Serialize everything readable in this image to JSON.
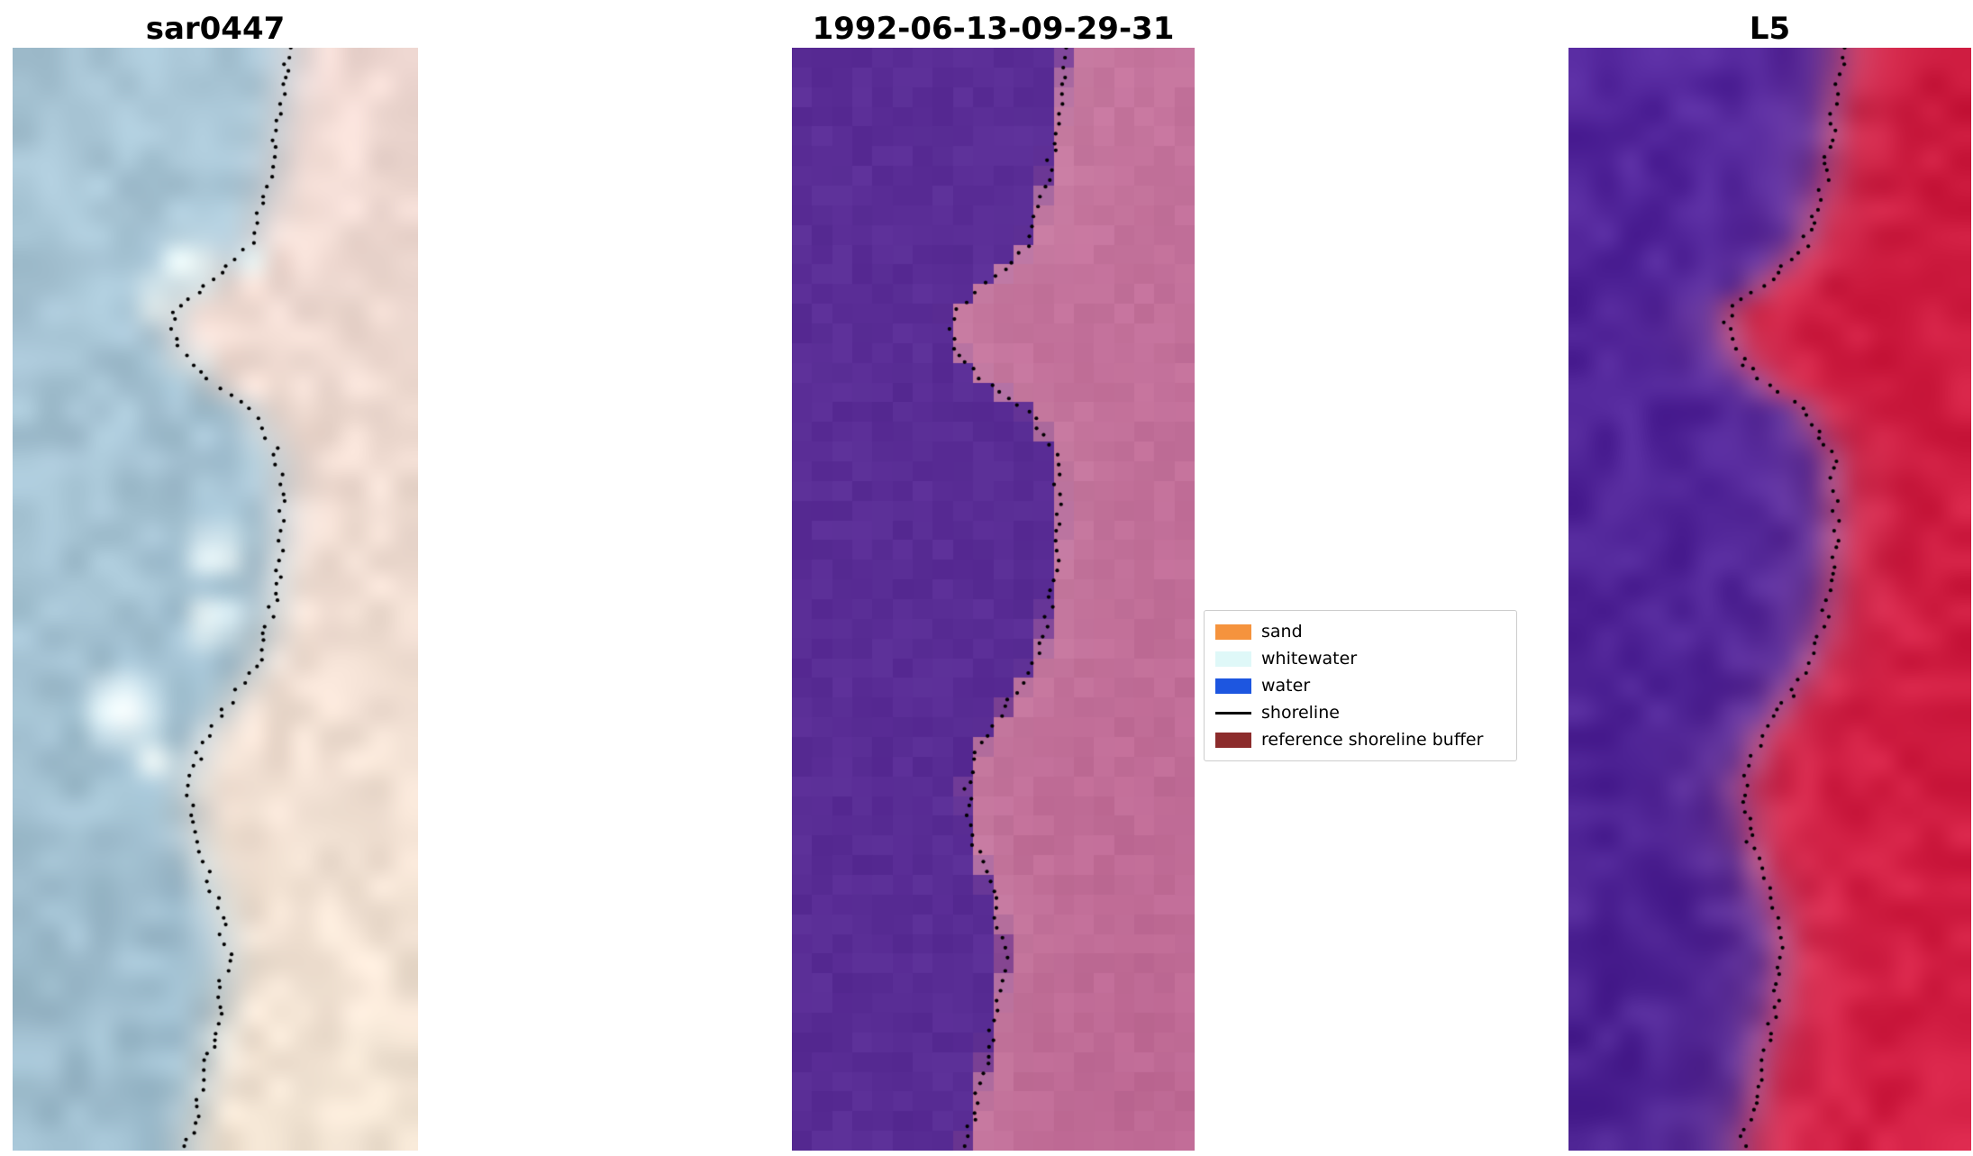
{
  "chart_data": {
    "type": "heatmap",
    "panels": [
      {
        "title": "sar0447",
        "render": {
          "cols": 16,
          "rows": 44,
          "smooth": true,
          "seed": 3,
          "left_top": "#a9c6d6",
          "left_bottom": "#9dbccd",
          "right_top": "#f0d9d3",
          "right_bottom": "#f2e4d3",
          "blend": 0.2,
          "noise": 0.055,
          "jitter": 5,
          "patch_color": "#f2fcfc",
          "patches": [
            [
              0.2,
              0.44,
              0.1
            ],
            [
              0.23,
              0.36,
              0.07
            ],
            [
              0.28,
              0.44,
              0.05
            ],
            [
              0.195,
              0.6,
              0.05
            ],
            [
              0.46,
              0.5,
              0.08
            ],
            [
              0.52,
              0.49,
              0.08
            ],
            [
              0.6,
              0.27,
              0.11
            ],
            [
              0.645,
              0.35,
              0.07
            ]
          ]
        }
      },
      {
        "title": "1992-06-13-09-29-31",
        "render": {
          "cols": 20,
          "rows": 56,
          "smooth": false,
          "seed": 5,
          "left_top": "#5a2d96",
          "left_bottom": "#582c94",
          "right_top": "#c4739c",
          "right_bottom": "#bd6893",
          "blend": 0.05,
          "noise": 0.02,
          "jitter": 4,
          "near_boundary": "#d093b0",
          "nb_width": 0.1,
          "nb_amount": 0.38,
          "nb_side": "right"
        }
      },
      {
        "title": "L5",
        "render": {
          "cols": 16,
          "rows": 44,
          "smooth": true,
          "seed": 9,
          "left_top": "#53269c",
          "left_bottom": "#4c2292",
          "right_top": "#cc1a3e",
          "right_bottom": "#d42045",
          "blend": 0.13,
          "noise": 0.05,
          "jitter": 5,
          "near_boundary": "#c97e9b",
          "nb_width": 0.07,
          "nb_amount": 0.5,
          "nb_side": "both"
        }
      }
    ],
    "shoreline_path": [
      [
        0.0,
        0.685
      ],
      [
        0.06,
        0.66
      ],
      [
        0.12,
        0.635
      ],
      [
        0.18,
        0.585
      ],
      [
        0.21,
        0.5
      ],
      [
        0.24,
        0.395
      ],
      [
        0.27,
        0.4
      ],
      [
        0.3,
        0.47
      ],
      [
        0.33,
        0.59
      ],
      [
        0.37,
        0.655
      ],
      [
        0.43,
        0.665
      ],
      [
        0.5,
        0.645
      ],
      [
        0.55,
        0.615
      ],
      [
        0.59,
        0.545
      ],
      [
        0.63,
        0.47
      ],
      [
        0.67,
        0.435
      ],
      [
        0.72,
        0.45
      ],
      [
        0.77,
        0.5
      ],
      [
        0.82,
        0.53
      ],
      [
        0.87,
        0.51
      ],
      [
        0.93,
        0.475
      ],
      [
        1.0,
        0.43
      ]
    ],
    "legend": {
      "items": [
        {
          "label": "sand",
          "color": "#f5933d"
        },
        {
          "label": "whitewater",
          "color": "#dff8f8"
        },
        {
          "label": "water",
          "color": "#1d56e0"
        },
        {
          "label": "shoreline",
          "color": "#000000"
        },
        {
          "label": "reference shoreline buffer",
          "color": "#8c2c2c"
        }
      ]
    }
  }
}
